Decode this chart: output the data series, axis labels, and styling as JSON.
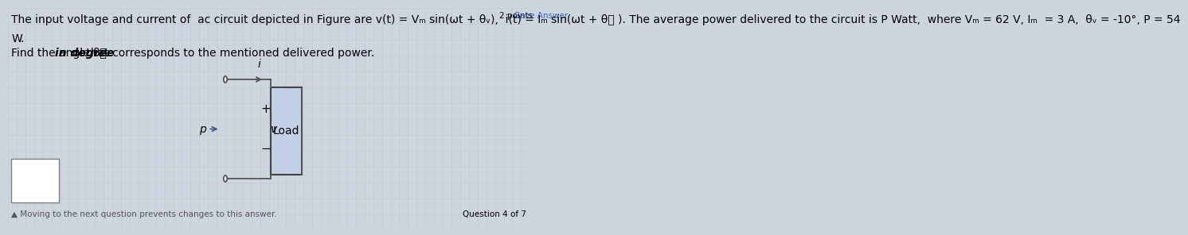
{
  "background_color": "#cdd5de",
  "points_text": "2 points",
  "save_answer_text": "Save Answer",
  "line1": "The input voltage and current of  ac circuit depicted in Figure are v(t) = Vₘ sin(ωt + θᵥ),  i(t) = Iₘ sin(ωt + θᨵ ). The average power delivered to the circuit is P Watt,  where Vₘ = 62 V, Iₘ  = 3 A,  θᵥ = -10°, P = 54",
  "line2": "W.",
  "line3": "Find the angle θᨵ  in degree that corresponds to the mentioned delivered power.",
  "question_text": "Question 4 of 7",
  "bottom_text": "▲ Moving to the next question prevents changes to this answer.",
  "load_label": "Load",
  "current_label": "i",
  "voltage_label": "v",
  "p_label": "p",
  "plus_label": "+",
  "minus_label": "−",
  "font_size_body": 10.0,
  "font_size_small": 8.0,
  "grid_color": "#bfc8d4",
  "load_box_color": "#c4d0e8",
  "wire_color": "#555555",
  "p_arrow_color": "#3a5a8a"
}
